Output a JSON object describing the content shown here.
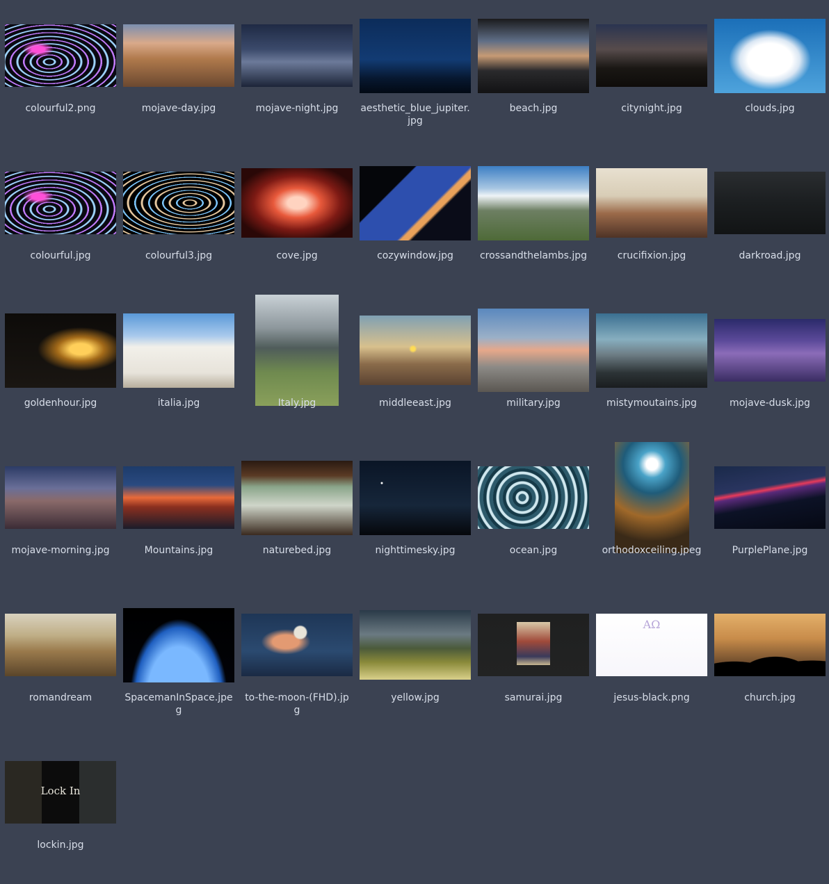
{
  "files": [
    {
      "name": "colourful2.png",
      "kind": "swirl",
      "aspect": "wide"
    },
    {
      "name": "mojave-day.jpg",
      "kind": "dune-day",
      "aspect": "wide"
    },
    {
      "name": "mojave-night.jpg",
      "kind": "dune-night",
      "aspect": "wide"
    },
    {
      "name": "aesthetic_blue_jupiter.jpg",
      "kind": "blue-sky",
      "aspect": "photo"
    },
    {
      "name": "beach.jpg",
      "kind": "window-dusk",
      "aspect": "photo"
    },
    {
      "name": "citynight.jpg",
      "kind": "city",
      "aspect": "wide"
    },
    {
      "name": "clouds.jpg",
      "kind": "clouds",
      "aspect": "photo"
    },
    {
      "name": "colourful.jpg",
      "kind": "swirl",
      "aspect": "wide"
    },
    {
      "name": "colourful3.jpg",
      "kind": "swirl2",
      "aspect": "wide"
    },
    {
      "name": "cove.jpg",
      "kind": "cove",
      "aspect": "mid"
    },
    {
      "name": "cozywindow.jpg",
      "kind": "cozywindow",
      "aspect": "photo"
    },
    {
      "name": "crossandthelambs.jpg",
      "kind": "mountains-day",
      "aspect": "photo"
    },
    {
      "name": "crucifixion.jpg",
      "kind": "painting-peak",
      "aspect": "mid"
    },
    {
      "name": "darkroad.jpg",
      "kind": "darkroad",
      "aspect": "wide"
    },
    {
      "name": "goldenhour.jpg",
      "kind": "goldenhour",
      "aspect": "photo"
    },
    {
      "name": "italia.jpg",
      "kind": "italia",
      "aspect": "photo"
    },
    {
      "name": "Italy.jpg",
      "kind": "italy",
      "aspect": "tall"
    },
    {
      "name": "middleeast.jpg",
      "kind": "middleeast",
      "aspect": "mid"
    },
    {
      "name": "military.jpg",
      "kind": "military",
      "aspect": "wide-tall"
    },
    {
      "name": "mistymoutains.jpg",
      "kind": "misty",
      "aspect": "photo"
    },
    {
      "name": "mojave-dusk.jpg",
      "kind": "dune-dusk",
      "aspect": "wide"
    },
    {
      "name": "mojave-morning.jpg",
      "kind": "dune-morning",
      "aspect": "wide"
    },
    {
      "name": "Mountains.jpg",
      "kind": "redmountains",
      "aspect": "wide"
    },
    {
      "name": "naturebed.jpg",
      "kind": "naturebed",
      "aspect": "photo"
    },
    {
      "name": "nighttimesky.jpg",
      "kind": "nightsky",
      "aspect": "photo"
    },
    {
      "name": "ocean.jpg",
      "kind": "ocean",
      "aspect": "wide"
    },
    {
      "name": "orthodoxceiling.jpeg",
      "kind": "ceiling",
      "aspect": "portrait"
    },
    {
      "name": "PurplePlane.jpg",
      "kind": "purpleplane",
      "aspect": "wide"
    },
    {
      "name": "romandream",
      "kind": "roman",
      "aspect": "wide"
    },
    {
      "name": "SpacemanInSpace.jpeg",
      "kind": "space",
      "aspect": "photo"
    },
    {
      "name": "to-the-moon-(FHD).jpg",
      "kind": "moon",
      "aspect": "wide"
    },
    {
      "name": "yellow.jpg",
      "kind": "yellow",
      "aspect": "mid"
    },
    {
      "name": "samurai.jpg",
      "kind": "samurai",
      "aspect": "wide"
    },
    {
      "name": "jesus-black.png",
      "kind": "jesus",
      "aspect": "wide"
    },
    {
      "name": "church.jpg",
      "kind": "church",
      "aspect": "wide"
    },
    {
      "name": "lockin.jpg",
      "kind": "lockin",
      "aspect": "wide",
      "text": "Lock In"
    }
  ],
  "thumb_text": {
    "jesus": "ΑΩ",
    "lockin": "Lock In"
  }
}
